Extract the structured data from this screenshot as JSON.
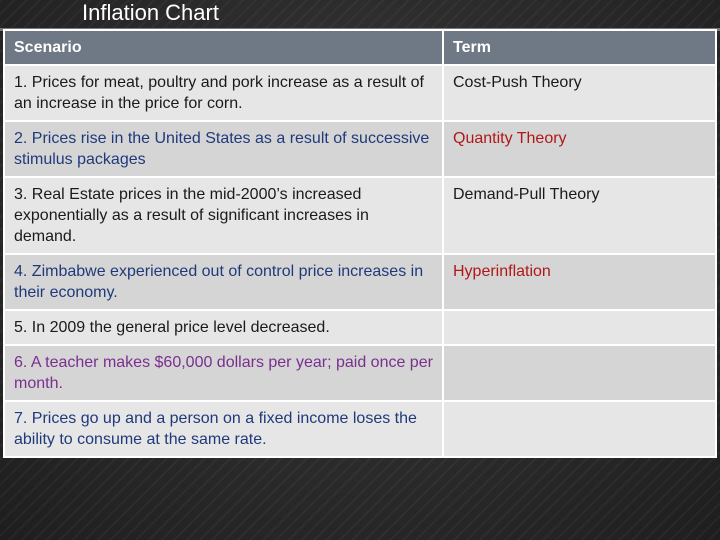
{
  "slide": {
    "title": "Inflation Chart"
  },
  "table": {
    "headers": {
      "scenario": "Scenario",
      "term": "Term"
    },
    "rows": [
      {
        "scenario": "1. Prices for meat, poultry and pork increase as a result of an increase in the price for corn.",
        "term": "Cost-Push Theory",
        "scenario_color": "#1a1a1a",
        "term_color": "#1a1a1a"
      },
      {
        "scenario": "2. Prices rise in the United States as a result of successive stimulus packages",
        "term": "Quantity Theory",
        "scenario_color": "#1f3a7a",
        "term_color": "#b01818"
      },
      {
        "scenario": "3. Real Estate prices in the mid-2000’s increased exponentially as a result of significant increases in demand.",
        "term": "Demand-Pull Theory",
        "scenario_color": "#1a1a1a",
        "term_color": "#1a1a1a"
      },
      {
        "scenario": "4. Zimbabwe experienced out of control price increases in their economy.",
        "term": "Hyperinflation",
        "scenario_color": "#1f3a7a",
        "term_color": "#b01818"
      },
      {
        "scenario": "5. In 2009 the general price level decreased.",
        "term": "",
        "scenario_color": "#1a1a1a",
        "term_color": "#1a1a1a"
      },
      {
        "scenario": "6. A teacher makes $60,000 dollars per year; paid once per month.",
        "term": "",
        "scenario_color": "#7a2f8f",
        "term_color": "#1a1a1a"
      },
      {
        "scenario": "7. Prices go up and a person on a fixed income loses the ability to consume at the same rate.",
        "term": "",
        "scenario_color": "#1f3a7a",
        "term_color": "#1a1a1a"
      }
    ]
  }
}
